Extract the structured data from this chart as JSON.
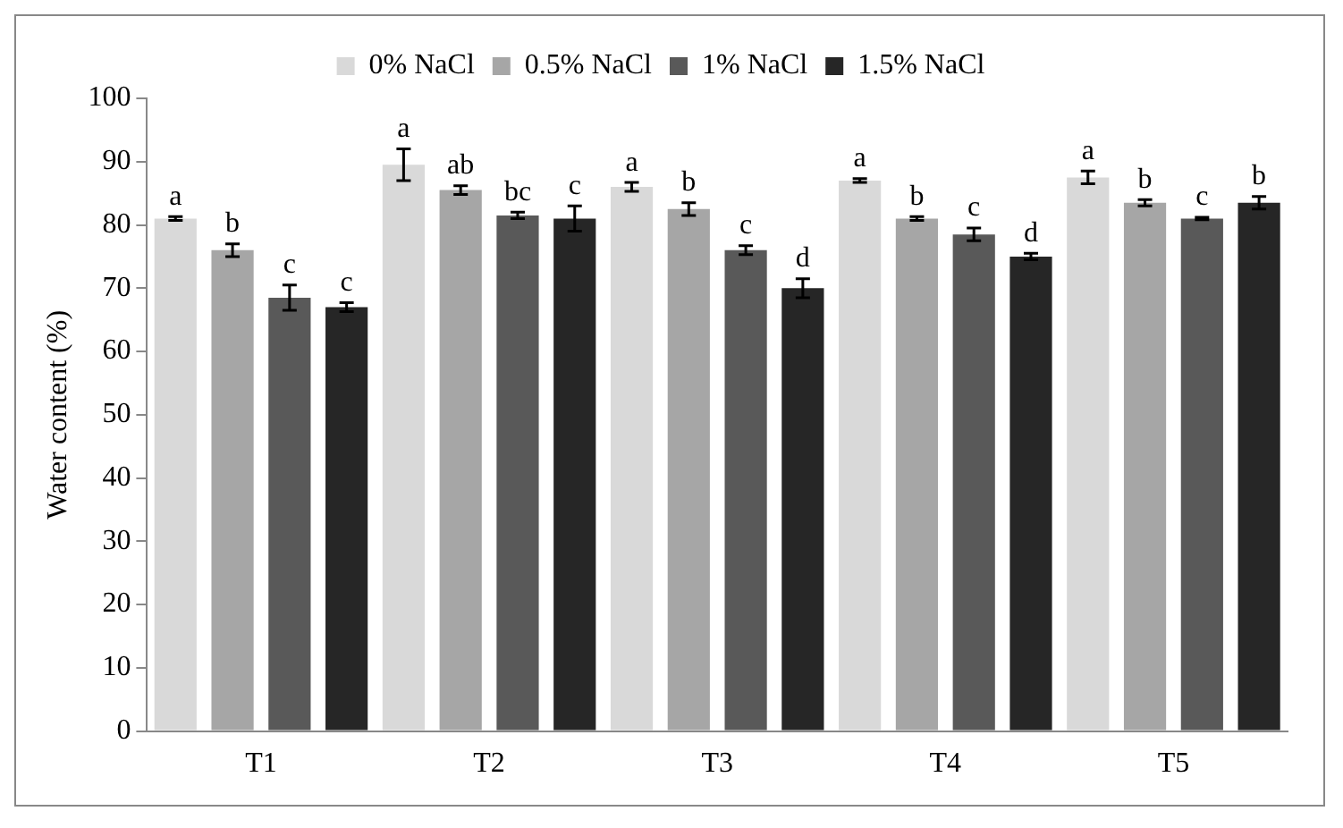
{
  "chart_data": {
    "type": "bar",
    "ylabel": "Water content (%)",
    "categories": [
      "T1",
      "T2",
      "T3",
      "T4",
      "T5"
    ],
    "series": [
      {
        "name": "0% NaCl",
        "color": "#d9d9d9",
        "values": [
          81,
          89.5,
          86,
          87,
          87.5
        ],
        "errors": [
          0.3,
          2.5,
          0.7,
          0.3,
          1
        ],
        "value_labels": [
          "a",
          "a",
          "a",
          "a",
          "a"
        ]
      },
      {
        "name": "0.5% NaCl",
        "color": "#a6a6a6",
        "values": [
          76,
          85.5,
          82.5,
          81,
          83.5
        ],
        "errors": [
          1,
          0.7,
          1,
          0.3,
          0.5
        ],
        "value_labels": [
          "b",
          "ab",
          "b",
          "b",
          "b"
        ]
      },
      {
        "name": "1% NaCl",
        "color": "#595959",
        "values": [
          68.5,
          81.5,
          76,
          78.5,
          81
        ],
        "errors": [
          2,
          0.5,
          0.7,
          1,
          0.2
        ],
        "value_labels": [
          "c",
          "bc",
          "c",
          "c",
          "c"
        ]
      },
      {
        "name": "1.5% NaCl",
        "color": "#262626",
        "values": [
          67,
          81,
          70,
          75,
          83.5
        ],
        "errors": [
          0.7,
          2,
          1.5,
          0.5,
          1
        ],
        "value_labels": [
          "c",
          "c",
          "d",
          "d",
          "b"
        ]
      }
    ],
    "ylim": [
      0,
      100
    ],
    "yticks": [
      0,
      10,
      20,
      30,
      40,
      50,
      60,
      70,
      80,
      90,
      100
    ],
    "grid": false,
    "legend": "top"
  }
}
